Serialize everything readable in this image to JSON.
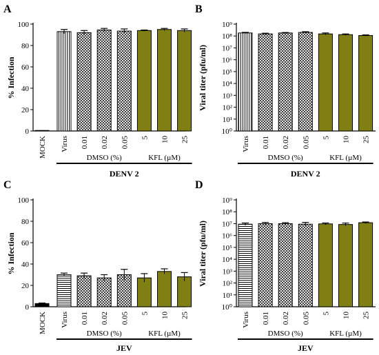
{
  "colors": {
    "kfl": "#7f7f14",
    "ink": "#000000",
    "background": "#ffffff"
  },
  "patterns": {
    "virus_A": "vertical-lines",
    "virus_B": "vertical-lines",
    "virus_C": "horizontal-lines",
    "virus_D": "horizontal-lines",
    "dmso": "crosshatch",
    "kfl": "solid"
  },
  "chart_data": [
    {
      "panel": "A",
      "type": "bar",
      "ylabel": "% Infection",
      "ylim": [
        0,
        100
      ],
      "yticks": [
        "0",
        "20",
        "40",
        "60",
        "80",
        "100"
      ],
      "categories": [
        "MOCK",
        "Virus",
        "0.01",
        "0.02",
        "0.05",
        "5",
        "10",
        "25"
      ],
      "values": [
        0.5,
        93,
        92,
        94.5,
        93.5,
        94,
        95,
        94
      ],
      "errors": [
        0,
        2,
        2,
        1.5,
        2,
        0.5,
        1,
        1.5
      ],
      "groups": [
        {
          "label": "DMSO (%)"
        },
        {
          "label": "KFL (µM)"
        }
      ],
      "xlabel": "DENV 2"
    },
    {
      "panel": "B",
      "type": "bar",
      "ylabel": "Viral titer (pfu/ml)",
      "scale": "log",
      "ylim": [
        1,
        1000000000
      ],
      "yticks": [
        "10⁰",
        "10¹",
        "10²",
        "10³",
        "10⁴",
        "10⁵",
        "10⁶",
        "10⁷",
        "10⁸",
        "10⁹"
      ],
      "categories": [
        "Virus",
        "0.01",
        "0.02",
        "0.05",
        "5",
        "10",
        "25"
      ],
      "values": [
        180000000,
        150000000,
        180000000,
        200000000,
        150000000,
        130000000,
        110000000
      ],
      "errors_log": [
        0.05,
        0.06,
        0.04,
        0.06,
        0.08,
        0.06,
        0.05
      ],
      "groups": [
        {
          "label": "DMSO (%)"
        },
        {
          "label": "KFL (µM)"
        }
      ],
      "xlabel": "DENV 2"
    },
    {
      "panel": "C",
      "type": "bar",
      "ylabel": "% Infection",
      "ylim": [
        0,
        100
      ],
      "yticks": [
        "0",
        "20",
        "40",
        "60",
        "80",
        "100"
      ],
      "categories": [
        "MOCK",
        "Virus",
        "0.01",
        "0.02",
        "0.05",
        "5",
        "10",
        "25"
      ],
      "values": [
        3,
        30,
        29,
        27,
        30,
        27,
        33,
        28
      ],
      "errors": [
        0.5,
        1.5,
        2.5,
        3,
        5,
        4,
        2.5,
        4
      ],
      "groups": [
        {
          "label": "DMSO (%)"
        },
        {
          "label": "KFL (µM)"
        }
      ],
      "xlabel": "JEV"
    },
    {
      "panel": "D",
      "type": "bar",
      "ylabel": "Viral titer (pfu/ml)",
      "scale": "log",
      "ylim": [
        1,
        1000000000
      ],
      "yticks": [
        "10⁰",
        "10¹",
        "10²",
        "10³",
        "10⁴",
        "10⁵",
        "10⁶",
        "10⁷",
        "10⁸",
        "10⁹"
      ],
      "categories": [
        "Virus",
        "0.01",
        "0.02",
        "0.05",
        "5",
        "10",
        "25"
      ],
      "values": [
        9000000,
        10000000,
        10000000,
        9000000,
        9500000,
        8500000,
        12000000
      ],
      "errors_log": [
        0.1,
        0.1,
        0.08,
        0.15,
        0.08,
        0.12,
        0.06
      ],
      "groups": [
        {
          "label": "DMSO (%)"
        },
        {
          "label": "KFL (µM)"
        }
      ],
      "xlabel": "JEV"
    }
  ]
}
